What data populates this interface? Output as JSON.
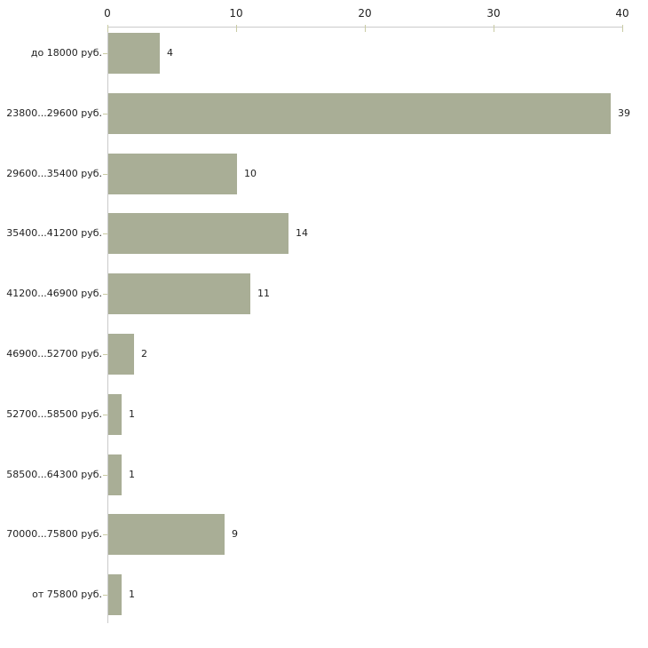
{
  "chart_data": {
    "type": "bar",
    "orientation": "horizontal",
    "title": "",
    "xlabel": "",
    "ylabel": "",
    "categories": [
      "до 18000 руб.",
      "23800...29600 руб.",
      "29600...35400 руб.",
      "35400...41200 руб.",
      "41200...46900 руб.",
      "46900...52700 руб.",
      "52700...58500 руб.",
      "58500...64300 руб.",
      "70000...75800 руб.",
      "от 75800 руб."
    ],
    "values": [
      4,
      39,
      10,
      14,
      11,
      2,
      1,
      1,
      9,
      1
    ],
    "xlim": [
      0,
      40
    ],
    "x_ticks": [
      0,
      10,
      20,
      30,
      40
    ],
    "axis_position": "top",
    "grid": false,
    "legend": "none",
    "colors": {
      "bar_fill": "#A9AE96",
      "axis_line": "#CBCBCB",
      "tick_mark": "#C9CBA3",
      "text": "#1f1f1f",
      "background": "#ffffff"
    }
  }
}
